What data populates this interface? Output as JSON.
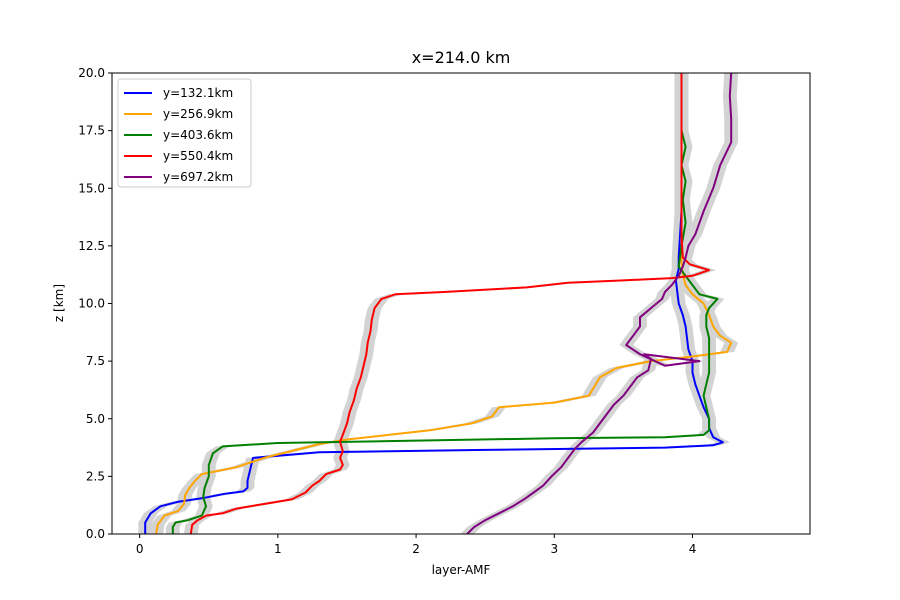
{
  "chart_data": {
    "type": "line",
    "title": "x=214.0 km",
    "xlabel": "layer-AMF",
    "ylabel": "z [km]",
    "xlim": [
      -0.2,
      4.85
    ],
    "ylim": [
      0,
      20
    ],
    "xticks": [
      "0",
      "1",
      "2",
      "3",
      "4"
    ],
    "yticks": [
      "0.0",
      "2.5",
      "5.0",
      "7.5",
      "10.0",
      "12.5",
      "15.0",
      "17.5",
      "20.0"
    ],
    "grid": false,
    "legend_position": "upper-left",
    "uncertainty_band_color": "#d3d3d3",
    "series": [
      {
        "name": "y=132.1km",
        "color": "#0000ff",
        "points": [
          [
            0.04,
            0
          ],
          [
            0.04,
            0.5
          ],
          [
            0.08,
            0.9
          ],
          [
            0.15,
            1.2
          ],
          [
            0.28,
            1.4
          ],
          [
            0.45,
            1.55
          ],
          [
            0.62,
            1.75
          ],
          [
            0.75,
            1.85
          ],
          [
            0.78,
            2.0
          ],
          [
            0.78,
            2.3
          ],
          [
            0.8,
            2.8
          ],
          [
            0.82,
            3.3
          ],
          [
            1.3,
            3.55
          ],
          [
            2.5,
            3.65
          ],
          [
            3.8,
            3.75
          ],
          [
            4.15,
            3.85
          ],
          [
            4.22,
            3.98
          ],
          [
            4.15,
            4.2
          ],
          [
            4.12,
            4.6
          ],
          [
            4.12,
            5.0
          ],
          [
            4.08,
            5.5
          ],
          [
            4.05,
            6.0
          ],
          [
            4.02,
            6.5
          ],
          [
            4.0,
            7.0
          ],
          [
            4.0,
            7.5
          ],
          [
            3.97,
            8.0
          ],
          [
            3.96,
            8.5
          ],
          [
            3.95,
            9.0
          ],
          [
            3.93,
            9.5
          ],
          [
            3.9,
            10.0
          ],
          [
            3.89,
            10.5
          ],
          [
            3.88,
            11.0
          ],
          [
            3.9,
            11.5
          ],
          [
            3.9,
            12.0
          ],
          [
            3.91,
            13.0
          ],
          [
            3.92,
            14.0
          ],
          [
            3.92,
            15.0
          ],
          [
            3.92,
            16.0
          ],
          [
            3.92,
            17.0
          ],
          [
            3.92,
            18.0
          ],
          [
            3.92,
            19.0
          ],
          [
            3.92,
            20.0
          ]
        ]
      },
      {
        "name": "y=256.9km",
        "color": "#ffa500",
        "points": [
          [
            0.12,
            0
          ],
          [
            0.13,
            0.4
          ],
          [
            0.18,
            0.8
          ],
          [
            0.28,
            1.0
          ],
          [
            0.32,
            1.3
          ],
          [
            0.33,
            1.7
          ],
          [
            0.36,
            2.0
          ],
          [
            0.4,
            2.3
          ],
          [
            0.45,
            2.6
          ],
          [
            0.7,
            2.9
          ],
          [
            0.9,
            3.3
          ],
          [
            1.1,
            3.6
          ],
          [
            1.3,
            3.9
          ],
          [
            1.5,
            4.1
          ],
          [
            1.8,
            4.3
          ],
          [
            2.1,
            4.5
          ],
          [
            2.4,
            4.8
          ],
          [
            2.55,
            5.1
          ],
          [
            2.6,
            5.5
          ],
          [
            3.0,
            5.7
          ],
          [
            3.25,
            6.0
          ],
          [
            3.28,
            6.3
          ],
          [
            3.33,
            6.8
          ],
          [
            3.45,
            7.2
          ],
          [
            3.7,
            7.5
          ],
          [
            4.0,
            7.7
          ],
          [
            4.25,
            7.9
          ],
          [
            4.28,
            8.3
          ],
          [
            4.2,
            8.6
          ],
          [
            4.15,
            9.0
          ],
          [
            4.12,
            9.5
          ],
          [
            4.08,
            10.0
          ],
          [
            4.0,
            10.4
          ],
          [
            3.95,
            10.8
          ],
          [
            3.93,
            11.3
          ],
          [
            3.92,
            11.8
          ],
          [
            3.92,
            12.5
          ],
          [
            3.92,
            13.5
          ],
          [
            3.92,
            14.5
          ],
          [
            3.92,
            15.5
          ],
          [
            3.92,
            16.5
          ],
          [
            3.92,
            17.5
          ],
          [
            3.92,
            18.5
          ],
          [
            3.92,
            19.5
          ],
          [
            3.92,
            20.0
          ]
        ]
      },
      {
        "name": "y=403.6km",
        "color": "#008000",
        "points": [
          [
            0.24,
            0
          ],
          [
            0.24,
            0.3
          ],
          [
            0.26,
            0.5
          ],
          [
            0.35,
            0.6
          ],
          [
            0.45,
            0.8
          ],
          [
            0.48,
            1.2
          ],
          [
            0.46,
            1.6
          ],
          [
            0.47,
            2.0
          ],
          [
            0.5,
            2.5
          ],
          [
            0.5,
            3.0
          ],
          [
            0.53,
            3.5
          ],
          [
            0.6,
            3.8
          ],
          [
            1.0,
            3.95
          ],
          [
            2.0,
            4.05
          ],
          [
            3.0,
            4.15
          ],
          [
            3.8,
            4.2
          ],
          [
            4.08,
            4.3
          ],
          [
            4.12,
            4.5
          ],
          [
            4.12,
            5.0
          ],
          [
            4.1,
            5.5
          ],
          [
            4.08,
            6.0
          ],
          [
            4.1,
            6.5
          ],
          [
            4.12,
            7.0
          ],
          [
            4.12,
            7.5
          ],
          [
            4.12,
            8.0
          ],
          [
            4.12,
            8.5
          ],
          [
            4.1,
            9.0
          ],
          [
            4.1,
            9.5
          ],
          [
            4.12,
            9.8
          ],
          [
            4.18,
            10.2
          ],
          [
            4.05,
            10.4
          ],
          [
            4.0,
            10.8
          ],
          [
            3.95,
            11.2
          ],
          [
            3.9,
            11.6
          ],
          [
            3.92,
            12.5
          ],
          [
            3.95,
            13.5
          ],
          [
            3.93,
            14.5
          ],
          [
            3.95,
            15.3
          ],
          [
            3.92,
            16.0
          ],
          [
            3.95,
            16.8
          ],
          [
            3.92,
            17.5
          ],
          [
            3.92,
            18.5
          ],
          [
            3.92,
            20.0
          ]
        ]
      },
      {
        "name": "y=550.4km",
        "color": "#ff0000",
        "points": [
          [
            0.37,
            0
          ],
          [
            0.38,
            0.4
          ],
          [
            0.42,
            0.6
          ],
          [
            0.48,
            0.8
          ],
          [
            0.6,
            0.9
          ],
          [
            0.7,
            1.1
          ],
          [
            0.9,
            1.3
          ],
          [
            1.1,
            1.5
          ],
          [
            1.2,
            1.8
          ],
          [
            1.25,
            2.1
          ],
          [
            1.3,
            2.3
          ],
          [
            1.35,
            2.6
          ],
          [
            1.45,
            2.8
          ],
          [
            1.47,
            3.0
          ],
          [
            1.45,
            3.3
          ],
          [
            1.47,
            3.6
          ],
          [
            1.45,
            4.0
          ],
          [
            1.47,
            4.3
          ],
          [
            1.5,
            4.8
          ],
          [
            1.52,
            5.3
          ],
          [
            1.55,
            5.8
          ],
          [
            1.57,
            6.3
          ],
          [
            1.6,
            6.8
          ],
          [
            1.62,
            7.3
          ],
          [
            1.64,
            7.8
          ],
          [
            1.65,
            8.3
          ],
          [
            1.67,
            8.8
          ],
          [
            1.68,
            9.3
          ],
          [
            1.7,
            9.8
          ],
          [
            1.75,
            10.2
          ],
          [
            1.85,
            10.4
          ],
          [
            2.2,
            10.5
          ],
          [
            2.8,
            10.7
          ],
          [
            3.1,
            10.9
          ],
          [
            3.5,
            11.0
          ],
          [
            3.85,
            11.1
          ],
          [
            4.0,
            11.2
          ],
          [
            4.12,
            11.45
          ],
          [
            3.98,
            11.7
          ],
          [
            3.93,
            12.0
          ],
          [
            3.92,
            13.0
          ],
          [
            3.92,
            14.0
          ],
          [
            3.92,
            15.0
          ],
          [
            3.92,
            16.0
          ],
          [
            3.92,
            17.0
          ],
          [
            3.92,
            18.0
          ],
          [
            3.92,
            19.0
          ],
          [
            3.92,
            20.0
          ]
        ]
      },
      {
        "name": "y=697.2km",
        "color": "#800080",
        "points": [
          [
            2.37,
            0
          ],
          [
            2.42,
            0.3
          ],
          [
            2.5,
            0.6
          ],
          [
            2.6,
            0.9
          ],
          [
            2.7,
            1.2
          ],
          [
            2.78,
            1.5
          ],
          [
            2.85,
            1.8
          ],
          [
            2.92,
            2.1
          ],
          [
            2.98,
            2.5
          ],
          [
            3.05,
            2.9
          ],
          [
            3.1,
            3.3
          ],
          [
            3.15,
            3.7
          ],
          [
            3.2,
            4.0
          ],
          [
            3.28,
            4.4
          ],
          [
            3.33,
            4.8
          ],
          [
            3.38,
            5.2
          ],
          [
            3.43,
            5.6
          ],
          [
            3.5,
            6.0
          ],
          [
            3.55,
            6.4
          ],
          [
            3.6,
            6.8
          ],
          [
            3.68,
            7.1
          ],
          [
            3.7,
            7.6
          ],
          [
            3.65,
            7.8
          ],
          [
            4.05,
            7.5
          ],
          [
            3.8,
            7.3
          ],
          [
            3.62,
            7.8
          ],
          [
            3.52,
            8.2
          ],
          [
            3.57,
            8.6
          ],
          [
            3.62,
            9.0
          ],
          [
            3.62,
            9.4
          ],
          [
            3.7,
            9.8
          ],
          [
            3.78,
            10.2
          ],
          [
            3.8,
            10.5
          ],
          [
            3.85,
            10.8
          ],
          [
            3.9,
            11.2
          ],
          [
            3.93,
            11.6
          ],
          [
            3.95,
            12.0
          ],
          [
            3.97,
            12.5
          ],
          [
            4.02,
            13.0
          ],
          [
            4.08,
            14.0
          ],
          [
            4.15,
            15.0
          ],
          [
            4.2,
            16.0
          ],
          [
            4.28,
            17.0
          ],
          [
            4.28,
            18.0
          ],
          [
            4.27,
            19.0
          ],
          [
            4.28,
            20.0
          ]
        ]
      }
    ]
  }
}
